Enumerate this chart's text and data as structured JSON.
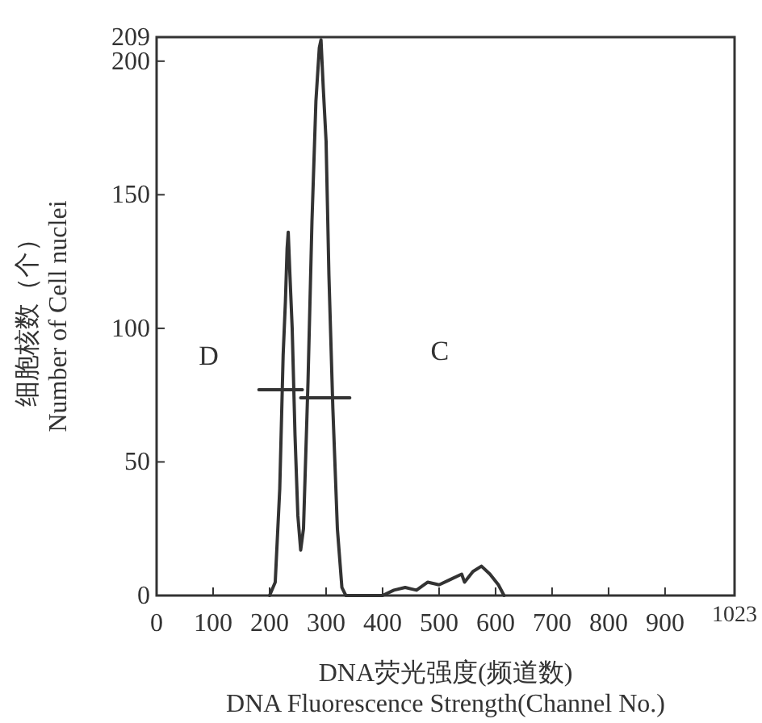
{
  "chart_data": {
    "type": "line",
    "xlabel": "DNA荧光强度(频道数)\nDNA Fluorescence Strength(Channel No.)",
    "ylabel": "细胞核数（个）\nNumber of Cell nuclei",
    "xlim": [
      0,
      1023
    ],
    "ylim": [
      0,
      209
    ],
    "xticks": [
      0,
      100,
      200,
      300,
      400,
      500,
      600,
      700,
      800,
      900,
      1023
    ],
    "yticks": [
      0,
      50,
      100,
      150,
      200,
      209
    ],
    "series": [
      {
        "color": "#333333",
        "x": [
          200,
          210,
          218,
          224,
          228,
          231,
          233,
          236,
          240,
          245,
          250,
          255,
          260,
          268,
          275,
          282,
          288,
          291,
          295,
          300,
          305,
          312,
          320,
          328,
          335,
          400,
          420,
          440,
          460,
          480,
          500,
          520,
          540,
          545,
          560,
          575,
          590,
          605,
          615
        ],
        "values": [
          0,
          5,
          40,
          90,
          110,
          130,
          136,
          120,
          100,
          60,
          30,
          17,
          25,
          80,
          140,
          185,
          205,
          208,
          190,
          170,
          120,
          70,
          25,
          3,
          0,
          0,
          2,
          3,
          2,
          5,
          4,
          6,
          8,
          5,
          9,
          11,
          8,
          4,
          0
        ]
      },
      {
        "color": "#333333",
        "x": [
          181,
          258
        ],
        "values": [
          77,
          77
        ]
      },
      {
        "color": "#333333",
        "x": [
          255,
          342
        ],
        "values": [
          74,
          74
        ]
      }
    ],
    "annotations": [
      "D",
      "C"
    ],
    "grid": false
  }
}
